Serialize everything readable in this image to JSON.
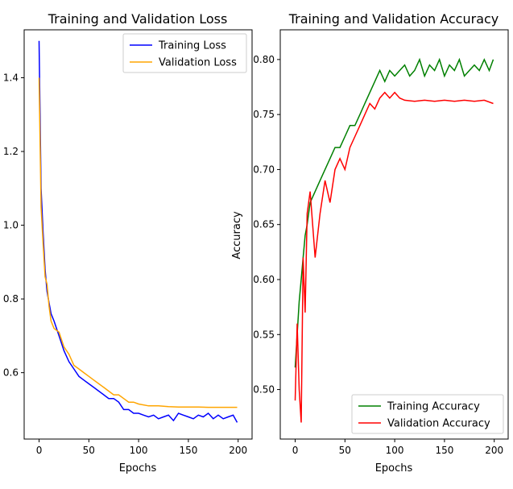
{
  "chart_data": [
    {
      "type": "line",
      "title": "Training and Validation Loss",
      "xlabel": "Epochs",
      "ylabel": "",
      "xlim": [
        -15,
        214
      ],
      "ylim": [
        0.42,
        1.53
      ],
      "xticks": [
        0,
        50,
        100,
        150,
        200
      ],
      "yticks": [
        0.6,
        0.8,
        1.0,
        1.2,
        1.4
      ],
      "xtick_labels": [
        "0",
        "50",
        "100",
        "150",
        "200"
      ],
      "ytick_labels": [
        "0.6",
        "0.8",
        "1.0",
        "1.2",
        "1.4"
      ],
      "legend_position": "top-right",
      "series": [
        {
          "name": "Training Loss",
          "color": "#0000ff",
          "x": [
            0,
            2,
            4,
            6,
            8,
            10,
            12,
            15,
            20,
            25,
            30,
            35,
            40,
            45,
            50,
            55,
            60,
            65,
            70,
            75,
            80,
            85,
            90,
            95,
            100,
            105,
            110,
            115,
            120,
            125,
            130,
            135,
            140,
            145,
            150,
            155,
            160,
            165,
            170,
            175,
            180,
            185,
            190,
            195,
            199
          ],
          "y": [
            1.5,
            1.1,
            0.98,
            0.88,
            0.82,
            0.79,
            0.76,
            0.74,
            0.7,
            0.66,
            0.63,
            0.61,
            0.59,
            0.58,
            0.57,
            0.56,
            0.55,
            0.54,
            0.53,
            0.53,
            0.52,
            0.5,
            0.5,
            0.49,
            0.49,
            0.485,
            0.48,
            0.485,
            0.475,
            0.48,
            0.485,
            0.47,
            0.49,
            0.485,
            0.48,
            0.475,
            0.485,
            0.48,
            0.49,
            0.475,
            0.485,
            0.475,
            0.48,
            0.485,
            0.465
          ]
        },
        {
          "name": "Validation Loss",
          "color": "#ffa500",
          "x": [
            0,
            2,
            4,
            6,
            8,
            10,
            12,
            15,
            20,
            25,
            30,
            35,
            40,
            45,
            50,
            55,
            60,
            65,
            70,
            75,
            80,
            85,
            90,
            95,
            100,
            110,
            120,
            130,
            140,
            150,
            160,
            170,
            180,
            190,
            199
          ],
          "y": [
            1.4,
            1.05,
            0.95,
            0.86,
            0.84,
            0.78,
            0.74,
            0.72,
            0.71,
            0.67,
            0.65,
            0.62,
            0.61,
            0.6,
            0.59,
            0.58,
            0.57,
            0.56,
            0.55,
            0.54,
            0.54,
            0.53,
            0.52,
            0.52,
            0.515,
            0.51,
            0.51,
            0.508,
            0.507,
            0.507,
            0.507,
            0.506,
            0.506,
            0.506,
            0.506
          ]
        }
      ]
    },
    {
      "type": "line",
      "title": "Training and Validation Accuracy",
      "xlabel": "Epochs",
      "ylabel": "Accuracy",
      "xlim": [
        -15,
        214
      ],
      "ylim": [
        0.455,
        0.827
      ],
      "xticks": [
        0,
        50,
        100,
        150,
        200
      ],
      "yticks": [
        0.5,
        0.55,
        0.6,
        0.65,
        0.7,
        0.75,
        0.8
      ],
      "xtick_labels": [
        "0",
        "50",
        "100",
        "150",
        "200"
      ],
      "ytick_labels": [
        "0.50",
        "0.55",
        "0.60",
        "0.65",
        "0.70",
        "0.75",
        "0.80"
      ],
      "legend_position": "bottom-right",
      "series": [
        {
          "name": "Training Accuracy",
          "color": "#008000",
          "x": [
            0,
            2,
            4,
            6,
            8,
            10,
            12,
            15,
            20,
            25,
            30,
            35,
            40,
            45,
            50,
            55,
            60,
            65,
            70,
            75,
            80,
            85,
            90,
            95,
            100,
            105,
            110,
            115,
            120,
            125,
            130,
            135,
            140,
            145,
            150,
            155,
            160,
            165,
            170,
            175,
            180,
            185,
            190,
            195,
            199
          ],
          "y": [
            0.52,
            0.55,
            0.58,
            0.6,
            0.62,
            0.64,
            0.65,
            0.67,
            0.68,
            0.69,
            0.7,
            0.71,
            0.72,
            0.72,
            0.73,
            0.74,
            0.74,
            0.75,
            0.76,
            0.77,
            0.78,
            0.79,
            0.78,
            0.79,
            0.785,
            0.79,
            0.795,
            0.785,
            0.79,
            0.8,
            0.785,
            0.795,
            0.79,
            0.8,
            0.785,
            0.795,
            0.79,
            0.8,
            0.785,
            0.79,
            0.795,
            0.79,
            0.8,
            0.79,
            0.8
          ]
        },
        {
          "name": "Validation Accuracy",
          "color": "#ff0000",
          "x": [
            0,
            2,
            4,
            6,
            8,
            10,
            12,
            15,
            20,
            25,
            30,
            35,
            40,
            45,
            50,
            55,
            60,
            65,
            70,
            75,
            80,
            85,
            90,
            95,
            100,
            105,
            110,
            120,
            130,
            140,
            150,
            160,
            170,
            180,
            190,
            199
          ],
          "y": [
            0.49,
            0.56,
            0.5,
            0.47,
            0.62,
            0.57,
            0.66,
            0.68,
            0.62,
            0.66,
            0.69,
            0.67,
            0.7,
            0.71,
            0.7,
            0.72,
            0.73,
            0.74,
            0.75,
            0.76,
            0.755,
            0.765,
            0.77,
            0.765,
            0.77,
            0.765,
            0.763,
            0.762,
            0.763,
            0.762,
            0.763,
            0.762,
            0.763,
            0.762,
            0.763,
            0.76
          ]
        }
      ]
    }
  ]
}
